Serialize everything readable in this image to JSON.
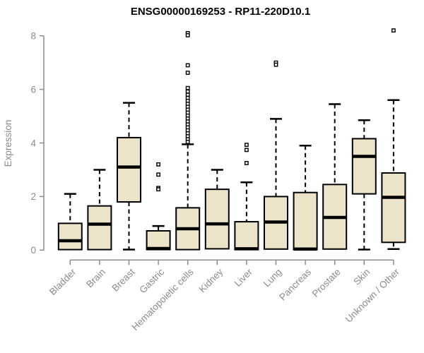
{
  "window": {
    "bg_color": "#ffffff"
  },
  "colors": {
    "box_fill": "#ece4c9",
    "box_border": "#000000",
    "median": "#000000",
    "whisker": "#000000",
    "axis": "#8b8b8b",
    "tick_label": "#8b8b8b",
    "title": "#000000"
  },
  "chart_data": {
    "type": "boxplot",
    "title": "ENSG00000169253 - RP11-220D10.1",
    "xlabel": "",
    "ylabel": "Expression",
    "ylim": [
      0,
      8
    ],
    "yticks": [
      0,
      2,
      4,
      6,
      8
    ],
    "grid": false,
    "legend": false,
    "categories": [
      "Bladder",
      "Brain",
      "Breast",
      "Gastric",
      "Hematopoietic cells",
      "Kidney",
      "Liver",
      "Lung",
      "Pancreas",
      "Prostate",
      "Skin",
      "Unknown / Other"
    ],
    "series": [
      {
        "name": "Bladder",
        "whisker_low": 0.02,
        "q1": 0.02,
        "median": 0.35,
        "q3": 1.0,
        "whisker_high": 2.1,
        "outliers": []
      },
      {
        "name": "Brain",
        "whisker_low": 0.02,
        "q1": 0.02,
        "median": 0.97,
        "q3": 1.65,
        "whisker_high": 3.0,
        "outliers": []
      },
      {
        "name": "Breast",
        "whisker_low": 0.02,
        "q1": 1.8,
        "median": 3.1,
        "q3": 4.2,
        "whisker_high": 5.5,
        "outliers": []
      },
      {
        "name": "Gastric",
        "whisker_low": 0.02,
        "q1": 0.02,
        "median": 0.06,
        "q3": 0.72,
        "whisker_high": 0.9,
        "outliers": [
          3.2,
          2.82,
          2.32,
          2.27
        ]
      },
      {
        "name": "Hematopoietic cells",
        "whisker_low": 0.02,
        "q1": 0.02,
        "median": 0.8,
        "q3": 1.58,
        "whisker_high": 3.95,
        "outliers": [
          8.1,
          8.02,
          6.9,
          6.62,
          6.05,
          5.92,
          5.8,
          5.68,
          5.57,
          5.46,
          5.35,
          5.24,
          5.13,
          5.02,
          4.91,
          4.8,
          4.69,
          4.58,
          4.47,
          4.36,
          4.25,
          4.14,
          4.04
        ]
      },
      {
        "name": "Kidney",
        "whisker_low": 0.05,
        "q1": 0.05,
        "median": 0.98,
        "q3": 2.27,
        "whisker_high": 3.0,
        "outliers": []
      },
      {
        "name": "Liver",
        "whisker_low": 0.02,
        "q1": 0.02,
        "median": 0.05,
        "q3": 1.06,
        "whisker_high": 2.53,
        "outliers": [
          3.93,
          3.74,
          3.25
        ]
      },
      {
        "name": "Lung",
        "whisker_low": 0.04,
        "q1": 0.04,
        "median": 1.05,
        "q3": 2.0,
        "whisker_high": 4.9,
        "outliers": [
          7.0,
          6.92
        ]
      },
      {
        "name": "Pancreas",
        "whisker_low": 0.02,
        "q1": 0.02,
        "median": 0.04,
        "q3": 2.15,
        "whisker_high": 3.9,
        "outliers": []
      },
      {
        "name": "Prostate",
        "whisker_low": 0.04,
        "q1": 0.04,
        "median": 1.22,
        "q3": 2.45,
        "whisker_high": 5.45,
        "outliers": []
      },
      {
        "name": "Skin",
        "whisker_low": 0.02,
        "q1": 2.1,
        "median": 3.5,
        "q3": 4.16,
        "whisker_high": 4.85,
        "outliers": []
      },
      {
        "name": "Unknown / Other",
        "whisker_low": 0.04,
        "q1": 0.29,
        "median": 1.97,
        "q3": 2.88,
        "whisker_high": 5.6,
        "outliers": [
          8.2
        ]
      }
    ]
  }
}
